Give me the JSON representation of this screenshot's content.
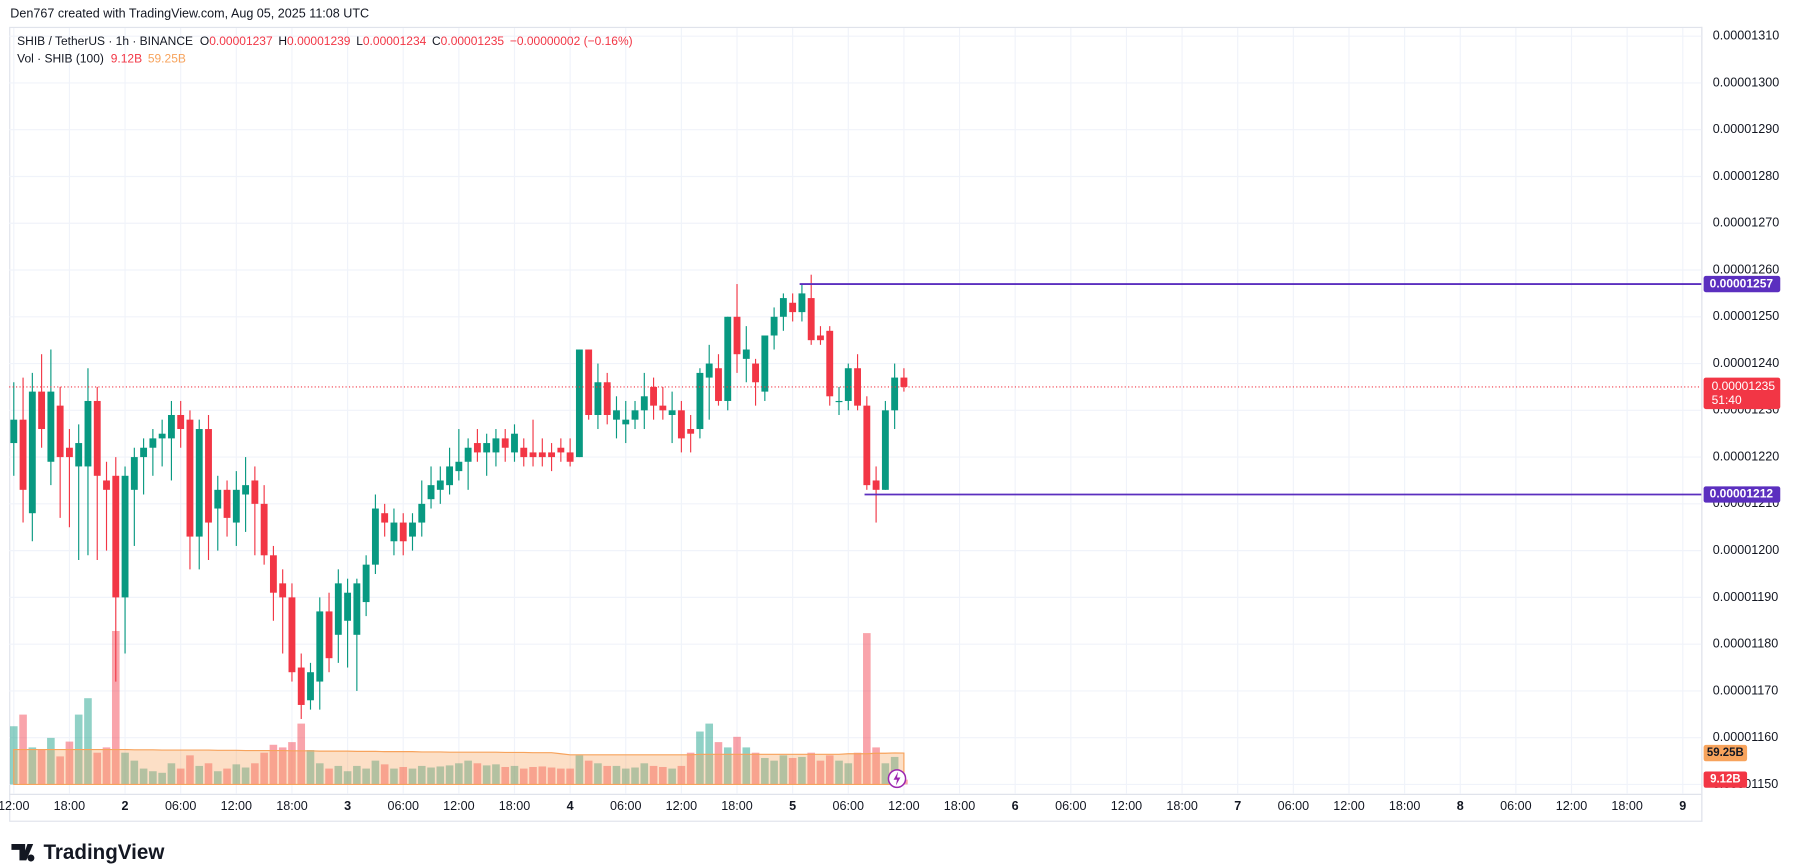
{
  "header": {
    "attribution": "Den767 created with TradingView.com, Aug 05, 2025 11:08 UTC",
    "symbol": "SHIB / TetherUS · 1h · BINANCE",
    "o_key": "O",
    "o": "0.00001237",
    "h_key": "H",
    "h": "0.00001239",
    "l_key": "L",
    "l": "0.00001234",
    "c_key": "C",
    "c": "0.00001235",
    "change": "−0.00000002 (−0.16%)",
    "vol_name": "Vol · SHIB (100)"
  },
  "footer": {
    "brand": "TradingView"
  },
  "chart_data": [
    {
      "type": "candlestick",
      "up_color": "#089981",
      "down_color": "#f23645",
      "grid": true,
      "xlim": [
        -0.5,
        182
      ],
      "ylim": [
        1.15e-05,
        1.31e-05
      ],
      "yticks": [
        {
          "value": 1.15e-05,
          "label": "0.00001150"
        },
        {
          "value": 1.16e-05,
          "label": "0.00001160"
        },
        {
          "value": 1.17e-05,
          "label": "0.00001170"
        },
        {
          "value": 1.18e-05,
          "label": "0.00001180"
        },
        {
          "value": 1.19e-05,
          "label": "0.00001190"
        },
        {
          "value": 1.2e-05,
          "label": "0.00001200"
        },
        {
          "value": 1.21e-05,
          "label": "0.00001210"
        },
        {
          "value": 1.22e-05,
          "label": "0.00001220"
        },
        {
          "value": 1.23e-05,
          "label": "0.00001230"
        },
        {
          "value": 1.24e-05,
          "label": "0.00001240"
        },
        {
          "value": 1.25e-05,
          "label": "0.00001250"
        },
        {
          "value": 1.26e-05,
          "label": "0.00001260"
        },
        {
          "value": 1.27e-05,
          "label": "0.00001270"
        },
        {
          "value": 1.28e-05,
          "label": "0.00001280"
        },
        {
          "value": 1.29e-05,
          "label": "0.00001290"
        },
        {
          "value": 1.3e-05,
          "label": "0.00001300"
        },
        {
          "value": 1.31e-05,
          "label": "0.00001310"
        }
      ],
      "xticks": [
        {
          "value": 0,
          "label": "12:00"
        },
        {
          "value": 6,
          "label": "18:00"
        },
        {
          "value": 12,
          "label": "2"
        },
        {
          "value": 18,
          "label": "06:00"
        },
        {
          "value": 24,
          "label": "12:00"
        },
        {
          "value": 30,
          "label": "18:00"
        },
        {
          "value": 36,
          "label": "3"
        },
        {
          "value": 42,
          "label": "06:00"
        },
        {
          "value": 48,
          "label": "12:00"
        },
        {
          "value": 54,
          "label": "18:00"
        },
        {
          "value": 60,
          "label": "4"
        },
        {
          "value": 66,
          "label": "06:00"
        },
        {
          "value": 72,
          "label": "12:00"
        },
        {
          "value": 78,
          "label": "18:00"
        },
        {
          "value": 84,
          "label": "5"
        },
        {
          "value": 90,
          "label": "06:00"
        },
        {
          "value": 96,
          "label": "12:00"
        },
        {
          "value": 102,
          "label": "18:00"
        },
        {
          "value": 108,
          "label": "6"
        },
        {
          "value": 114,
          "label": "06:00"
        },
        {
          "value": 120,
          "label": "12:00"
        },
        {
          "value": 126,
          "label": "18:00"
        },
        {
          "value": 132,
          "label": "7"
        },
        {
          "value": 138,
          "label": "06:00"
        },
        {
          "value": 144,
          "label": "12:00"
        },
        {
          "value": 150,
          "label": "18:00"
        },
        {
          "value": 156,
          "label": "8"
        },
        {
          "value": 162,
          "label": "06:00"
        },
        {
          "value": 168,
          "label": "12:00"
        },
        {
          "value": 174,
          "label": "18:00"
        },
        {
          "value": 180,
          "label": "9"
        }
      ],
      "candles": [
        [
          1.223e-05,
          1.236e-05,
          1.216e-05,
          1.228e-05
        ],
        [
          1.228e-05,
          1.237e-05,
          1.206e-05,
          1.213e-05
        ],
        [
          1.208e-05,
          1.238e-05,
          1.202e-05,
          1.234e-05
        ],
        [
          1.234e-05,
          1.242e-05,
          1.222e-05,
          1.226e-05
        ],
        [
          1.219e-05,
          1.243e-05,
          1.214e-05,
          1.234e-05
        ],
        [
          1.231e-05,
          1.235e-05,
          1.207e-05,
          1.22e-05
        ],
        [
          1.222e-05,
          1.226e-05,
          1.205e-05,
          1.22e-05
        ],
        [
          1.218e-05,
          1.227e-05,
          1.198e-05,
          1.223e-05
        ],
        [
          1.218e-05,
          1.239e-05,
          1.199e-05,
          1.232e-05
        ],
        [
          1.232e-05,
          1.235e-05,
          1.198e-05,
          1.216e-05
        ],
        [
          1.215e-05,
          1.219e-05,
          1.2e-05,
          1.213e-05
        ],
        [
          1.216e-05,
          1.22e-05,
          1.172e-05,
          1.19e-05
        ],
        [
          1.19e-05,
          1.218e-05,
          1.178e-05,
          1.216e-05
        ],
        [
          1.213e-05,
          1.222e-05,
          1.201e-05,
          1.22e-05
        ],
        [
          1.22e-05,
          1.224e-05,
          1.212e-05,
          1.222e-05
        ],
        [
          1.222e-05,
          1.226e-05,
          1.216e-05,
          1.224e-05
        ],
        [
          1.224e-05,
          1.228e-05,
          1.218e-05,
          1.225e-05
        ],
        [
          1.224e-05,
          1.232e-05,
          1.215e-05,
          1.229e-05
        ],
        [
          1.229e-05,
          1.232e-05,
          1.222e-05,
          1.226e-05
        ],
        [
          1.228e-05,
          1.23e-05,
          1.196e-05,
          1.203e-05
        ],
        [
          1.203e-05,
          1.228e-05,
          1.196e-05,
          1.226e-05
        ],
        [
          1.226e-05,
          1.229e-05,
          1.198e-05,
          1.206e-05
        ],
        [
          1.209e-05,
          1.216e-05,
          1.2e-05,
          1.213e-05
        ],
        [
          1.213e-05,
          1.215e-05,
          1.203e-05,
          1.207e-05
        ],
        [
          1.206e-05,
          1.217e-05,
          1.201e-05,
          1.213e-05
        ],
        [
          1.212e-05,
          1.22e-05,
          1.204e-05,
          1.214e-05
        ],
        [
          1.215e-05,
          1.218e-05,
          1.199e-05,
          1.21e-05
        ],
        [
          1.21e-05,
          1.214e-05,
          1.197e-05,
          1.199e-05
        ],
        [
          1.199e-05,
          1.201e-05,
          1.185e-05,
          1.191e-05
        ],
        [
          1.193e-05,
          1.196e-05,
          1.178e-05,
          1.19e-05
        ],
        [
          1.19e-05,
          1.193e-05,
          1.172e-05,
          1.174e-05
        ],
        [
          1.175e-05,
          1.178e-05,
          1.164e-05,
          1.167e-05
        ],
        [
          1.168e-05,
          1.176e-05,
          1.166e-05,
          1.174e-05
        ],
        [
          1.172e-05,
          1.19e-05,
          1.166e-05,
          1.187e-05
        ],
        [
          1.187e-05,
          1.191e-05,
          1.174e-05,
          1.177e-05
        ],
        [
          1.182e-05,
          1.196e-05,
          1.176e-05,
          1.193e-05
        ],
        [
          1.185e-05,
          1.194e-05,
          1.175e-05,
          1.191e-05
        ],
        [
          1.182e-05,
          1.194e-05,
          1.17e-05,
          1.193e-05
        ],
        [
          1.189e-05,
          1.199e-05,
          1.186e-05,
          1.197e-05
        ],
        [
          1.197e-05,
          1.212e-05,
          1.195e-05,
          1.209e-05
        ],
        [
          1.208e-05,
          1.21e-05,
          1.203e-05,
          1.206e-05
        ],
        [
          1.202e-05,
          1.209e-05,
          1.199e-05,
          1.206e-05
        ],
        [
          1.206e-05,
          1.208e-05,
          1.199e-05,
          1.202e-05
        ],
        [
          1.203e-05,
          1.208e-05,
          1.2e-05,
          1.206e-05
        ],
        [
          1.206e-05,
          1.215e-05,
          1.203e-05,
          1.21e-05
        ],
        [
          1.211e-05,
          1.218e-05,
          1.209e-05,
          1.214e-05
        ],
        [
          1.213e-05,
          1.218e-05,
          1.21e-05,
          1.215e-05
        ],
        [
          1.214e-05,
          1.222e-05,
          1.212e-05,
          1.218e-05
        ],
        [
          1.217e-05,
          1.226e-05,
          1.215e-05,
          1.219e-05
        ],
        [
          1.219e-05,
          1.224e-05,
          1.213e-05,
          1.222e-05
        ],
        [
          1.223e-05,
          1.226e-05,
          1.219e-05,
          1.221e-05
        ],
        [
          1.221e-05,
          1.225e-05,
          1.216e-05,
          1.223e-05
        ],
        [
          1.221e-05,
          1.226e-05,
          1.218e-05,
          1.224e-05
        ],
        [
          1.224e-05,
          1.226e-05,
          1.219e-05,
          1.222e-05
        ],
        [
          1.221e-05,
          1.227e-05,
          1.219e-05,
          1.225e-05
        ],
        [
          1.222e-05,
          1.224e-05,
          1.218e-05,
          1.22e-05
        ],
        [
          1.221e-05,
          1.228e-05,
          1.218e-05,
          1.22e-05
        ],
        [
          1.221e-05,
          1.224e-05,
          1.218e-05,
          1.22e-05
        ],
        [
          1.221e-05,
          1.223e-05,
          1.217e-05,
          1.22e-05
        ],
        [
          1.222e-05,
          1.224e-05,
          1.219e-05,
          1.221e-05
        ],
        [
          1.221e-05,
          1.224e-05,
          1.218e-05,
          1.219e-05
        ],
        [
          1.22e-05,
          1.243e-05,
          1.22e-05,
          1.243e-05
        ],
        [
          1.243e-05,
          1.243e-05,
          1.228e-05,
          1.229e-05
        ],
        [
          1.229e-05,
          1.24e-05,
          1.226e-05,
          1.236e-05
        ],
        [
          1.236e-05,
          1.238e-05,
          1.227e-05,
          1.229e-05
        ],
        [
          1.228e-05,
          1.233e-05,
          1.224e-05,
          1.23e-05
        ],
        [
          1.227e-05,
          1.232e-05,
          1.223e-05,
          1.228e-05
        ],
        [
          1.228e-05,
          1.232e-05,
          1.226e-05,
          1.23e-05
        ],
        [
          1.23e-05,
          1.238e-05,
          1.226e-05,
          1.233e-05
        ],
        [
          1.235e-05,
          1.237e-05,
          1.228e-05,
          1.231e-05
        ],
        [
          1.231e-05,
          1.235e-05,
          1.228e-05,
          1.23e-05
        ],
        [
          1.229e-05,
          1.234e-05,
          1.223e-05,
          1.23e-05
        ],
        [
          1.23e-05,
          1.232e-05,
          1.221e-05,
          1.224e-05
        ],
        [
          1.226e-05,
          1.229e-05,
          1.221e-05,
          1.225e-05
        ],
        [
          1.226e-05,
          1.239e-05,
          1.224e-05,
          1.238e-05
        ],
        [
          1.237e-05,
          1.244e-05,
          1.228e-05,
          1.24e-05
        ],
        [
          1.239e-05,
          1.242e-05,
          1.231e-05,
          1.232e-05
        ],
        [
          1.232e-05,
          1.25e-05,
          1.23e-05,
          1.25e-05
        ],
        [
          1.25e-05,
          1.257e-05,
          1.238e-05,
          1.242e-05
        ],
        [
          1.241e-05,
          1.248e-05,
          1.236e-05,
          1.243e-05
        ],
        [
          1.24e-05,
          1.241e-05,
          1.231e-05,
          1.236e-05
        ],
        [
          1.234e-05,
          1.246e-05,
          1.232e-05,
          1.246e-05
        ],
        [
          1.246e-05,
          1.252e-05,
          1.243e-05,
          1.25e-05
        ],
        [
          1.25e-05,
          1.255e-05,
          1.247e-05,
          1.254e-05
        ],
        [
          1.253e-05,
          1.255e-05,
          1.249e-05,
          1.251e-05
        ],
        [
          1.251e-05,
          1.257e-05,
          1.249e-05,
          1.255e-05
        ],
        [
          1.254e-05,
          1.259e-05,
          1.244e-05,
          1.245e-05
        ],
        [
          1.246e-05,
          1.248e-05,
          1.244e-05,
          1.245e-05
        ],
        [
          1.247e-05,
          1.248e-05,
          1.231e-05,
          1.233e-05
        ],
        [
          1.232e-05,
          1.235e-05,
          1.229e-05,
          1.232e-05
        ],
        [
          1.232e-05,
          1.24e-05,
          1.23e-05,
          1.239e-05
        ],
        [
          1.239e-05,
          1.242e-05,
          1.23e-05,
          1.231e-05
        ],
        [
          1.231e-05,
          1.233e-05,
          1.213e-05,
          1.214e-05
        ],
        [
          1.215e-05,
          1.218e-05,
          1.206e-05,
          1.213e-05
        ],
        [
          1.213e-05,
          1.232e-05,
          1.213e-05,
          1.23e-05
        ],
        [
          1.23e-05,
          1.24e-05,
          1.226e-05,
          1.237e-05
        ],
        [
          1.237e-05,
          1.239e-05,
          1.234e-05,
          1.235e-05
        ]
      ],
      "hlines": [
        {
          "value": 1.257e-05,
          "color": "#5b2fbf"
        },
        {
          "value": 1.212e-05,
          "color": "#5b2fbf"
        }
      ],
      "last_price": {
        "value": 1.235e-05,
        "countdown": "51:40",
        "color": "#f23645"
      }
    },
    {
      "type": "bar",
      "ylim": [
        0,
        300
      ],
      "ma_color": "#f7a35c",
      "values": [
        110,
        132,
        70,
        66,
        88,
        53,
        81,
        132,
        163,
        60,
        70,
        290,
        60,
        45,
        30,
        25,
        22,
        40,
        30,
        55,
        35,
        40,
        25,
        30,
        38,
        32,
        40,
        60,
        75,
        70,
        80,
        115,
        65,
        40,
        30,
        35,
        25,
        35,
        30,
        45,
        38,
        30,
        33,
        30,
        35,
        32,
        34,
        36,
        40,
        45,
        40,
        36,
        38,
        33,
        35,
        30,
        33,
        34,
        32,
        30,
        30,
        55,
        45,
        40,
        35,
        35,
        30,
        32,
        40,
        35,
        33,
        30,
        35,
        60,
        100,
        115,
        80,
        70,
        90,
        70,
        60,
        50,
        45,
        55,
        50,
        52,
        60,
        45,
        55,
        45,
        40,
        60,
        286,
        70,
        40,
        52,
        9.12
      ],
      "ma": [
        66,
        66,
        66,
        66,
        66,
        66,
        66,
        66,
        66,
        66,
        66,
        66,
        66,
        65.5,
        65.5,
        65.5,
        65,
        65,
        65,
        65,
        65,
        65,
        64.5,
        64.5,
        64.5,
        64,
        64,
        64,
        64,
        64,
        63.5,
        63.5,
        63.5,
        63,
        63,
        63,
        63,
        62.5,
        62.5,
        62.5,
        62,
        62,
        62,
        62,
        61.5,
        61.5,
        61.5,
        61,
        61,
        61,
        61,
        61,
        61,
        60.5,
        60.5,
        60.5,
        60,
        60,
        60,
        58,
        56,
        56,
        56,
        56,
        56,
        56,
        56,
        56,
        56,
        56,
        56,
        56,
        56,
        56,
        57,
        57,
        57,
        57,
        57,
        57,
        57,
        57,
        57,
        57,
        57,
        57,
        57,
        57,
        57,
        57,
        58,
        58,
        58,
        59,
        59,
        59.5,
        59.25
      ],
      "tags": [
        {
          "value": 59.25,
          "label": "59.25B",
          "color": "#f7a35c"
        },
        {
          "value": 9.12,
          "label": "9.12B",
          "color": "#f23645"
        }
      ]
    }
  ]
}
